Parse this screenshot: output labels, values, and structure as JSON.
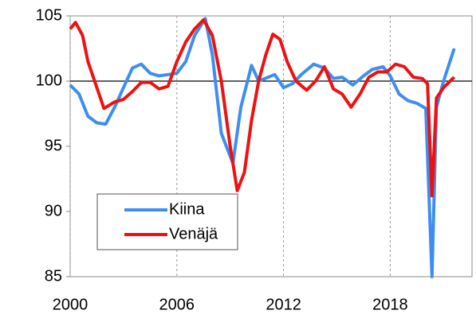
{
  "chart_data": {
    "type": "line",
    "xlim": [
      2000,
      2022.6
    ],
    "xticks": [
      2000,
      2006,
      2012,
      2018
    ],
    "ylim": [
      85,
      105
    ],
    "yticks": [
      85,
      90,
      95,
      100,
      105
    ],
    "hline": 100,
    "grid": true,
    "legend": "lower left",
    "series": [
      {
        "name": "Kiina",
        "color": "#3e8ef0",
        "x": [
          2000,
          2000.5,
          2001,
          2001.5,
          2002,
          2002.5,
          2003,
          2003.5,
          2004,
          2004.5,
          2005,
          2005.5,
          2006,
          2006.5,
          2007,
          2007.6,
          2008,
          2008.5,
          2009.15,
          2009.6,
          2010.2,
          2010.6,
          2011.5,
          2012,
          2012.5,
          2013,
          2013.7,
          2014.3,
          2014.8,
          2015.3,
          2015.9,
          2016.5,
          2017,
          2017.6,
          2018,
          2018.5,
          2019,
          2019.5,
          2020,
          2020.35,
          2020.6,
          2021,
          2021.6
        ],
        "values": [
          99.7,
          99,
          97.3,
          96.8,
          96.7,
          98,
          99.5,
          101,
          101.3,
          100.6,
          100.4,
          100.5,
          100.6,
          101.5,
          103.5,
          104.8,
          102,
          96,
          93.7,
          98,
          101.2,
          100,
          100.5,
          99.5,
          99.8,
          100.5,
          101.3,
          101,
          100.2,
          100.3,
          99.7,
          100.4,
          100.9,
          101.1,
          100.4,
          99,
          98.5,
          98.3,
          97.9,
          85,
          98,
          100,
          102.5
        ]
      },
      {
        "name": "Venäjä",
        "color": "#ee1111",
        "x": [
          2000,
          2000.3,
          2000.7,
          2001,
          2001.5,
          2001.9,
          2002.5,
          2003,
          2003.5,
          2004,
          2004.5,
          2005,
          2005.5,
          2006,
          2006.5,
          2007,
          2007.5,
          2008,
          2008.5,
          2009,
          2009.4,
          2009.8,
          2010.2,
          2010.6,
          2011,
          2011.4,
          2011.8,
          2012.2,
          2012.7,
          2013.3,
          2013.8,
          2014.3,
          2014.8,
          2015.3,
          2015.8,
          2016.3,
          2016.8,
          2017.3,
          2017.8,
          2018.3,
          2018.8,
          2019.3,
          2019.8,
          2020.1,
          2020.35,
          2020.6,
          2021,
          2021.6
        ],
        "values": [
          104,
          104.5,
          103.5,
          101.5,
          99.5,
          97.9,
          98.4,
          98.6,
          99.2,
          99.9,
          99.9,
          99.4,
          99.6,
          101.5,
          103,
          104,
          104.7,
          103.5,
          100,
          95,
          91.6,
          93,
          97,
          100,
          102,
          103.6,
          103.2,
          101.5,
          100,
          99.3,
          100,
          101.1,
          99.4,
          99,
          98,
          99,
          100.3,
          100.7,
          100.7,
          101.3,
          101.1,
          100.3,
          100.2,
          99.8,
          91.2,
          98.7,
          99.5,
          100.3
        ]
      }
    ]
  }
}
